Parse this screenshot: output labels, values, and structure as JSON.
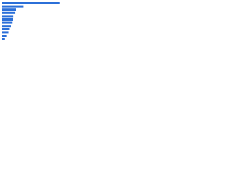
{
  "chart_data": {
    "type": "bar",
    "orientation": "horizontal",
    "categories": [
      null,
      null,
      null,
      null,
      null,
      null,
      null,
      null,
      null,
      null,
      null,
      null
    ],
    "values": [
      85,
      32,
      21,
      19,
      17,
      16,
      15,
      13,
      11,
      9,
      7,
      4
    ],
    "color": "#2b6fd8",
    "xlim": [
      0,
      100
    ]
  }
}
